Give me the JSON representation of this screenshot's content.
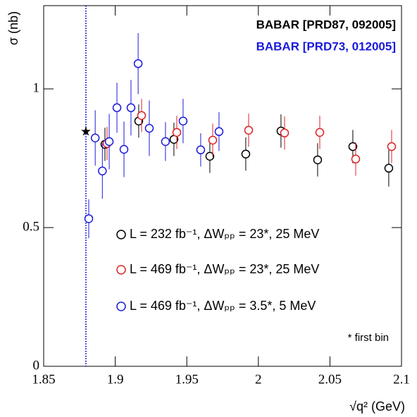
{
  "chart_data": {
    "type": "scatter",
    "x_label": "√q² (GeV)",
    "y_label": "σ (nb)",
    "annotations": [
      {
        "text": "BABAR [PRD87, 092005]",
        "color": "#000000"
      },
      {
        "text": "BABAR [PRD73, 012005]",
        "color": "#1a1adc"
      },
      {
        "text": "* first bin",
        "color": "#000000"
      }
    ],
    "xlim": [
      1.85,
      2.1
    ],
    "xticks": [
      1.85,
      1.9,
      1.95,
      2,
      2.05,
      2.1
    ],
    "ylim": [
      0,
      1.3
    ],
    "yticks": [
      0,
      0.5,
      1
    ],
    "threshold_x": 1.8795,
    "star": {
      "x": 1.8795,
      "y": 0.846
    },
    "series": [
      {
        "name": "L = 232 fb⁻¹, ΔWₚₚ = 23*, 25 MeV",
        "color": "#000000",
        "x": [
          1.8928,
          1.9164,
          1.941,
          1.9661,
          1.9912,
          2.0158,
          2.0414,
          2.066,
          2.0911
        ],
        "values": [
          0.8,
          0.884,
          0.818,
          0.757,
          0.765,
          0.848,
          0.744,
          0.792,
          0.714
        ],
        "errors": [
          0.06,
          0.06,
          0.06,
          0.06,
          0.06,
          0.06,
          0.06,
          0.06,
          0.066
        ]
      },
      {
        "name": "L = 469 fb⁻¹, ΔWₚₚ = 23*, 25 MeV",
        "color": "#dd2222",
        "x": [
          1.8943,
          1.9184,
          1.943,
          1.9681,
          1.9932,
          2.0183,
          2.0429,
          2.068,
          2.0931
        ],
        "values": [
          0.803,
          0.904,
          0.843,
          0.815,
          0.851,
          0.841,
          0.843,
          0.747,
          0.792
        ],
        "errors": [
          0.06,
          0.06,
          0.06,
          0.06,
          0.06,
          0.06,
          0.06,
          0.06,
          0.06
        ]
      },
      {
        "name": "L = 469 fb⁻¹, ΔWₚₚ = 3.5*, 5 MeV",
        "color": "#1a1adc",
        "x": [
          1.8815,
          1.886,
          1.891,
          1.8958,
          1.9012,
          1.9061,
          1.911,
          1.916,
          1.9238,
          1.9351,
          1.9474,
          1.9597,
          1.9725
        ],
        "values": [
          0.532,
          0.823,
          0.704,
          0.81,
          0.932,
          0.782,
          0.932,
          1.091,
          0.858,
          0.81,
          0.884,
          0.78,
          0.846
        ],
        "errors": [
          0.07,
          0.1,
          0.1,
          0.1,
          0.09,
          0.1,
          0.1,
          0.11,
          0.1,
          0.07,
          0.08,
          0.06,
          0.07
        ]
      }
    ]
  }
}
